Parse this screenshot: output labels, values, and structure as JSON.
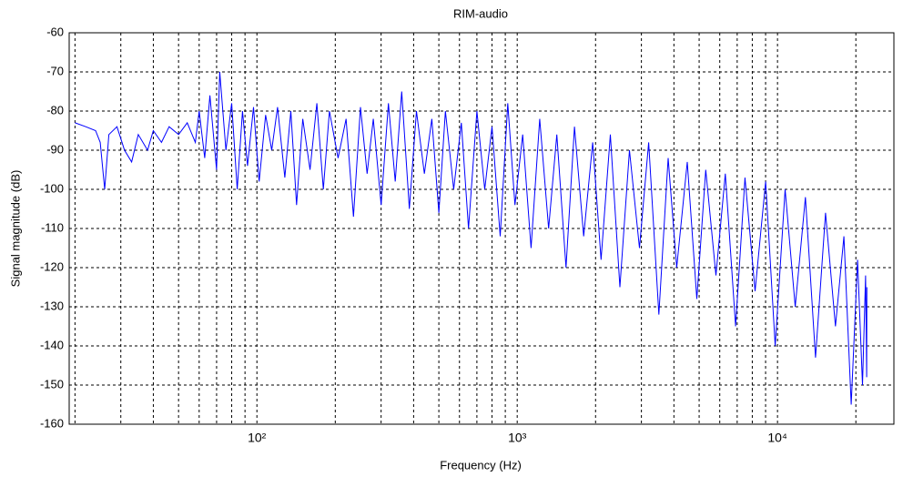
{
  "chart_data": {
    "type": "line",
    "title": "RIM-audio",
    "xlabel": "Frequency (Hz)",
    "ylabel": "Signal magnitude (dB)",
    "xscale": "log",
    "grid": true,
    "xlim": [
      19,
      28000
    ],
    "ylim": [
      -160,
      -60
    ],
    "xticks": [
      {
        "value": 100,
        "label": "10²"
      },
      {
        "value": 1000,
        "label": "10³"
      },
      {
        "value": 10000,
        "label": "10⁴"
      }
    ],
    "xminorticks": [
      20,
      30,
      40,
      50,
      60,
      70,
      80,
      90,
      200,
      300,
      400,
      500,
      600,
      700,
      800,
      900,
      2000,
      3000,
      4000,
      5000,
      6000,
      7000,
      8000,
      9000,
      20000
    ],
    "yticks": [
      -160,
      -150,
      -140,
      -130,
      -120,
      -110,
      -100,
      -90,
      -80,
      -70,
      -60
    ],
    "x": [
      20,
      22,
      24,
      25,
      26,
      27,
      29,
      31,
      33,
      35,
      38,
      40,
      43,
      46,
      50,
      54,
      58,
      60,
      63,
      66,
      70,
      72,
      76,
      80,
      84,
      88,
      92,
      97,
      102,
      108,
      114,
      120,
      128,
      135,
      142,
      150,
      160,
      170,
      180,
      190,
      205,
      220,
      235,
      250,
      265,
      280,
      300,
      320,
      340,
      360,
      385,
      410,
      440,
      470,
      500,
      530,
      570,
      610,
      650,
      700,
      750,
      800,
      860,
      920,
      980,
      1050,
      1130,
      1220,
      1320,
      1420,
      1540,
      1660,
      1800,
      1950,
      2100,
      2280,
      2480,
      2700,
      2950,
      3200,
      3500,
      3800,
      4100,
      4500,
      4900,
      5300,
      5800,
      6300,
      6900,
      7500,
      8200,
      9000,
      9800,
      10700,
      11700,
      12800,
      14000,
      15300,
      16700,
      18000,
      19200,
      20300,
      21200,
      21800,
      22000,
      22050
    ],
    "series": [
      {
        "name": "RIM-audio",
        "color": "#0000ff",
        "values": [
          -83,
          -84,
          -85,
          -88,
          -100,
          -86,
          -84,
          -90,
          -93,
          -86,
          -90,
          -85,
          -88,
          -84,
          -86,
          -83,
          -88,
          -80,
          -92,
          -76,
          -95,
          -70,
          -90,
          -78,
          -100,
          -80,
          -94,
          -79,
          -98,
          -81,
          -90,
          -79,
          -97,
          -80,
          -104,
          -82,
          -95,
          -78,
          -100,
          -80,
          -92,
          -82,
          -107,
          -79,
          -96,
          -82,
          -104,
          -78,
          -98,
          -75,
          -105,
          -80,
          -96,
          -82,
          -106,
          -80,
          -100,
          -83,
          -110,
          -80,
          -100,
          -84,
          -112,
          -78,
          -104,
          -86,
          -115,
          -82,
          -110,
          -86,
          -120,
          -84,
          -112,
          -88,
          -118,
          -86,
          -125,
          -90,
          -115,
          -88,
          -132,
          -92,
          -120,
          -93,
          -128,
          -95,
          -122,
          -96,
          -135,
          -97,
          -126,
          -98,
          -140,
          -100,
          -130,
          -102,
          -143,
          -106,
          -135,
          -112,
          -155,
          -118,
          -150,
          -122,
          -148,
          -125
        ]
      }
    ]
  }
}
